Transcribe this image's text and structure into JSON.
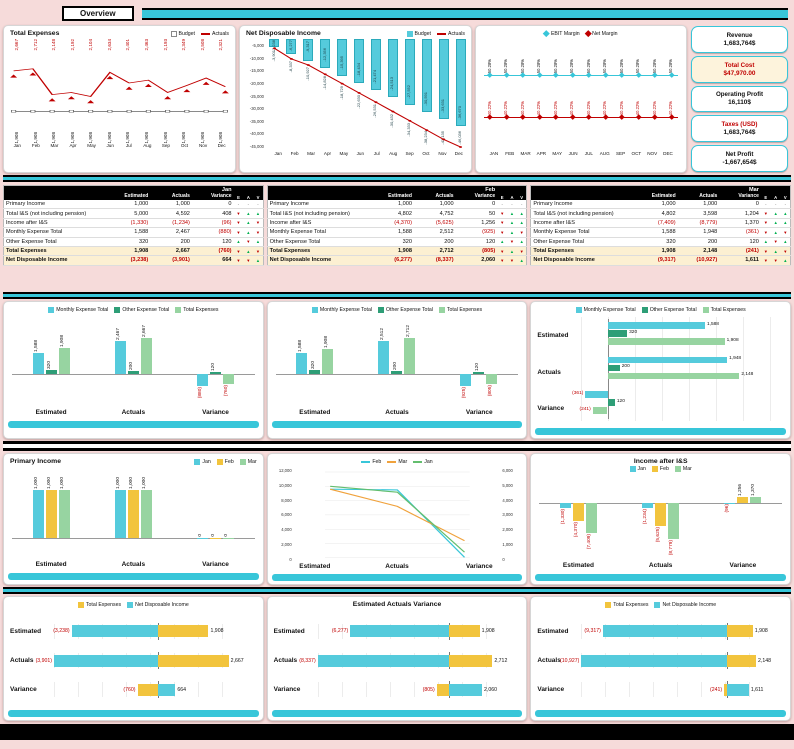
{
  "header": {
    "tab_label": "Overview"
  },
  "colors": {
    "accent_cyan": "#38C6D9",
    "bar_cyan": "#55CBDC",
    "dark_green": "#2E9E77",
    "light_green": "#97D4A1",
    "yellow": "#F2C43D",
    "orange": "#F0A23C",
    "line_green": "#63BE6E",
    "negative_red": "#C00000",
    "up_green": "#00B050"
  },
  "top": {
    "total_expenses": {
      "title": "Total Expenses",
      "legend": [
        "Budget",
        "Actuals"
      ],
      "months": [
        "Jan",
        "Feb",
        "Mar",
        "Apr",
        "May",
        "Jun",
        "Jul",
        "Aug",
        "Sep",
        "Oct",
        "Nov",
        "Dec"
      ],
      "budget_labels": [
        "1,908",
        "1,908",
        "1,908",
        "1,908",
        "1,908",
        "1,908",
        "1,908",
        "1,908",
        "1,908",
        "1,908",
        "1,908",
        "1,908"
      ],
      "actuals_labels": [
        "2,667",
        "2,712",
        "2,148",
        "2,192",
        "2,104",
        "2,634",
        "2,401",
        "2,463",
        "2,193",
        "2,349",
        "2,508",
        "2,321"
      ]
    },
    "net_disposable_income": {
      "title": "Net Disposable Income",
      "legend": [
        "Budget",
        "Actuals"
      ],
      "months": [
        "Jan",
        "Feb",
        "Mar",
        "Apr",
        "May",
        "Jun",
        "Jul",
        "Aug",
        "Sep",
        "Oct",
        "Nov",
        "Dec"
      ],
      "y_ticks": [
        "-5,000",
        "-10,000",
        "-15,000",
        "-20,000",
        "-25,000",
        "-30,000",
        "-35,000",
        "-40,000",
        "-45,000"
      ],
      "budget_labels": [
        "-3,238",
        "-6,277",
        "-9,317",
        "-12,356",
        "-15,395",
        "-18,434",
        "-21,474",
        "-24,513",
        "-27,552",
        "-30,591",
        "-33,631",
        "-36,670"
      ],
      "actuals_labels": [
        "-3,901",
        "-8,337",
        "-10,927",
        "-14,828",
        "-18,729",
        "-22,630",
        "-26,531",
        "-30,432",
        "-34,333",
        "-38,234",
        "-42,135",
        "-46,036"
      ]
    },
    "margins": {
      "legend": [
        "EBIT Margin",
        "Net Margin"
      ],
      "months": [
        "JAN",
        "FEB",
        "MAR",
        "APR",
        "MAY",
        "JUN",
        "JUL",
        "AUG",
        "SEP",
        "OCT",
        "NOV",
        "DEC"
      ],
      "ebit_labels": [
        "50.28%",
        "50.28%",
        "50.28%",
        "50.28%",
        "50.28%",
        "50.28%",
        "50.28%",
        "50.28%",
        "50.28%",
        "50.28%",
        "50.28%",
        "50.28%"
      ],
      "net_labels": [
        "40.22%",
        "40.22%",
        "40.22%",
        "40.22%",
        "40.22%",
        "40.22%",
        "40.22%",
        "40.22%",
        "40.22%",
        "40.22%",
        "40.22%",
        "40.22%"
      ]
    },
    "kpis": [
      {
        "label": "Revenue",
        "value": "1,683,764$",
        "style": "normal"
      },
      {
        "label": "Total Cost",
        "value": "$47,970.00",
        "style": "alert"
      },
      {
        "label": "Operating Profit",
        "value": "16,110$",
        "style": "normal"
      },
      {
        "label": "Taxes (USD)",
        "value": "1,683,764$",
        "style": "red-label"
      },
      {
        "label": "Net Profit",
        "value": "-1,667,654$",
        "style": "normal"
      }
    ]
  },
  "tables": {
    "columns": [
      "Estimated",
      "Actuals",
      "Variance"
    ],
    "flag_cols": [
      "E",
      "A",
      "V"
    ],
    "months": [
      {
        "month": "Jan",
        "rows": [
          {
            "label": "Primary Income",
            "est": "1,000",
            "act": "1,000",
            "var": "0",
            "flags": [
              "dash",
              "dash",
              "dash"
            ]
          },
          {
            "label": "Total I&S (not including pension)",
            "est": "5,000",
            "act": "4,592",
            "var": "408",
            "flags": [
              "down",
              "up",
              "up"
            ]
          },
          {
            "label": "Income after I&S",
            "est": "(1,330)",
            "act": "(1,234)",
            "var": "(96)",
            "flags": [
              "down",
              "up",
              "down"
            ]
          },
          {
            "label": "Monthly Expense Total",
            "est": "1,588",
            "act": "2,467",
            "var": "(880)",
            "flags": [
              "down",
              "up",
              "down"
            ]
          },
          {
            "label": "Other Expense Total",
            "est": "320",
            "act": "200",
            "var": "120",
            "flags": [
              "up",
              "down",
              "up"
            ]
          },
          {
            "label": "Total Expenses",
            "est": "1,908",
            "act": "2,667",
            "var": "(760)",
            "flags": [
              "down",
              "up",
              "down"
            ],
            "hl": true
          },
          {
            "label": "Net Disposable Income",
            "est": "(3,238)",
            "act": "(3,901)",
            "var": "664",
            "flags": [
              "down",
              "down",
              "up"
            ],
            "hl": true
          }
        ]
      },
      {
        "month": "Feb",
        "rows": [
          {
            "label": "Primary Income",
            "est": "1,000",
            "act": "1,000",
            "var": "0",
            "flags": [
              "dash",
              "dash",
              "dash"
            ]
          },
          {
            "label": "Total I&S (not including pension)",
            "est": "4,802",
            "act": "4,752",
            "var": "50",
            "flags": [
              "down",
              "up",
              "up"
            ]
          },
          {
            "label": "Income after I&S",
            "est": "(4,370)",
            "act": "(5,625)",
            "var": "1,256",
            "flags": [
              "down",
              "up",
              "up"
            ]
          },
          {
            "label": "Monthly Expense Total",
            "est": "1,588",
            "act": "2,512",
            "var": "(925)",
            "flags": [
              "down",
              "up",
              "down"
            ]
          },
          {
            "label": "Other Expense Total",
            "est": "320",
            "act": "200",
            "var": "120",
            "flags": [
              "up",
              "down",
              "up"
            ]
          },
          {
            "label": "Total Expenses",
            "est": "1,908",
            "act": "2,712",
            "var": "(805)",
            "flags": [
              "down",
              "up",
              "down"
            ],
            "hl": true
          },
          {
            "label": "Net Disposable Income",
            "est": "(6,277)",
            "act": "(8,337)",
            "var": "2,060",
            "flags": [
              "down",
              "down",
              "up"
            ],
            "hl": true
          }
        ]
      },
      {
        "month": "Mar",
        "rows": [
          {
            "label": "Primary Income",
            "est": "1,000",
            "act": "1,000",
            "var": "0",
            "flags": [
              "dash",
              "dash",
              "dash"
            ]
          },
          {
            "label": "Total I&S (not including pension)",
            "est": "4,802",
            "act": "3,598",
            "var": "1,204",
            "flags": [
              "down",
              "up",
              "up"
            ]
          },
          {
            "label": "Income after I&S",
            "est": "(7,409)",
            "act": "(8,779)",
            "var": "1,370",
            "flags": [
              "down",
              "up",
              "up"
            ]
          },
          {
            "label": "Monthly Expense Total",
            "est": "1,588",
            "act": "1,948",
            "var": "(361)",
            "flags": [
              "down",
              "up",
              "down"
            ]
          },
          {
            "label": "Other Expense Total",
            "est": "320",
            "act": "200",
            "var": "120",
            "flags": [
              "up",
              "down",
              "up"
            ]
          },
          {
            "label": "Total Expenses",
            "est": "1,908",
            "act": "2,148",
            "var": "(241)",
            "flags": [
              "down",
              "up",
              "down"
            ],
            "hl": true
          },
          {
            "label": "Net Disposable Income",
            "est": "(9,317)",
            "act": "(10,927)",
            "var": "1,611",
            "flags": [
              "down",
              "down",
              "up"
            ],
            "hl": true
          }
        ]
      }
    ]
  },
  "expense_charts": [
    {
      "orientation": "v",
      "legend": [
        "Monthly Expense Total",
        "Other Expense Total",
        "Total Expenses"
      ],
      "categories": [
        "Estimated",
        "Actuals",
        "Variance"
      ],
      "values": [
        [
          "1,588",
          "320",
          "1,908"
        ],
        [
          "2,467",
          "200",
          "2,667"
        ],
        [
          "(880)",
          "120",
          "(760)"
        ]
      ]
    },
    {
      "orientation": "v",
      "legend": [
        "Monthly Expense Total",
        "Other Expense Total",
        "Total Expenses"
      ],
      "categories": [
        "Estimated",
        "Actuals",
        "Variance"
      ],
      "values": [
        [
          "1,588",
          "320",
          "1,908"
        ],
        [
          "2,512",
          "200",
          "2,712"
        ],
        [
          "(925)",
          "120",
          "(805)"
        ]
      ]
    },
    {
      "orientation": "h",
      "legend": [
        "Monthly Expense Total",
        "Other Expense Total",
        "Total Expenses"
      ],
      "categories": [
        "Estimated",
        "Actuals",
        "Variance"
      ],
      "values": [
        [
          "1,588",
          "320",
          "1,908"
        ],
        [
          "1,948",
          "200",
          "2,148"
        ],
        [
          "(361)",
          "120",
          "(241)"
        ]
      ]
    }
  ],
  "income_charts": {
    "primary": {
      "title": "Primary Income",
      "legend": [
        "Jan",
        "Feb",
        "Mar"
      ],
      "categories": [
        "Estimated",
        "Actuals",
        "Variance"
      ],
      "values": [
        [
          "1,000",
          "1,000",
          "1,000"
        ],
        [
          "1,000",
          "1,000",
          "1,000"
        ],
        [
          "0",
          "0",
          "0"
        ]
      ]
    },
    "lines": {
      "legend": [
        "Feb",
        "Mar",
        "Jan"
      ],
      "categories": [
        "Estimated",
        "Actuals",
        "Variance"
      ],
      "left_ticks": [
        "12,000",
        "10,000",
        "8,000",
        "6,000",
        "4,000",
        "2,000",
        "0"
      ],
      "right_ticks": [
        "6,000",
        "5,000",
        "4,000",
        "3,000",
        "2,000",
        "1,000",
        "0"
      ],
      "series": [
        {
          "name": "Feb",
          "values": [
            "4,802",
            "4,752",
            "50"
          ]
        },
        {
          "name": "Mar",
          "values": [
            "4,802",
            "3,598",
            "1,204"
          ]
        },
        {
          "name": "Jan",
          "values": [
            "5,000",
            "4,592",
            "408"
          ]
        }
      ]
    },
    "after_is": {
      "title": "Income after I&S",
      "legend": [
        "Jan",
        "Feb",
        "Mar"
      ],
      "categories": [
        "Estimated",
        "Actuals",
        "Variance"
      ],
      "values": [
        [
          "(1,330)",
          "(4,370)",
          "(7,409)"
        ],
        [
          "(1,234)",
          "(5,625)",
          "(8,779)"
        ],
        [
          "(96)",
          "1,256",
          "1,370"
        ]
      ]
    }
  },
  "summary_charts": [
    {
      "legend": [
        "Total Expenses",
        "Net Disposable Income"
      ],
      "categories": [
        "Estimated",
        "Actuals",
        "Variance"
      ],
      "total_expenses": [
        "1,908",
        "2,667",
        "(760)"
      ],
      "net_disposable_income": [
        "(3,238)",
        "(3,901)",
        "664"
      ]
    },
    {
      "title": "Estimated Actuals Variance",
      "categories": [
        "Estimated",
        "Actuals",
        "Variance"
      ],
      "total_expenses": [
        "1,908",
        "2,712",
        "(805)"
      ],
      "net_disposable_income": [
        "(6,277)",
        "(8,337)",
        "2,060"
      ]
    },
    {
      "legend": [
        "Total Expenses",
        "Net Disposable Income"
      ],
      "categories": [
        "Estimated",
        "Actuals",
        "Variance"
      ],
      "total_expenses": [
        "1,908",
        "2,148",
        "(241)"
      ],
      "net_disposable_income": [
        "(9,317)",
        "(10,927)",
        "1,611"
      ]
    }
  ]
}
